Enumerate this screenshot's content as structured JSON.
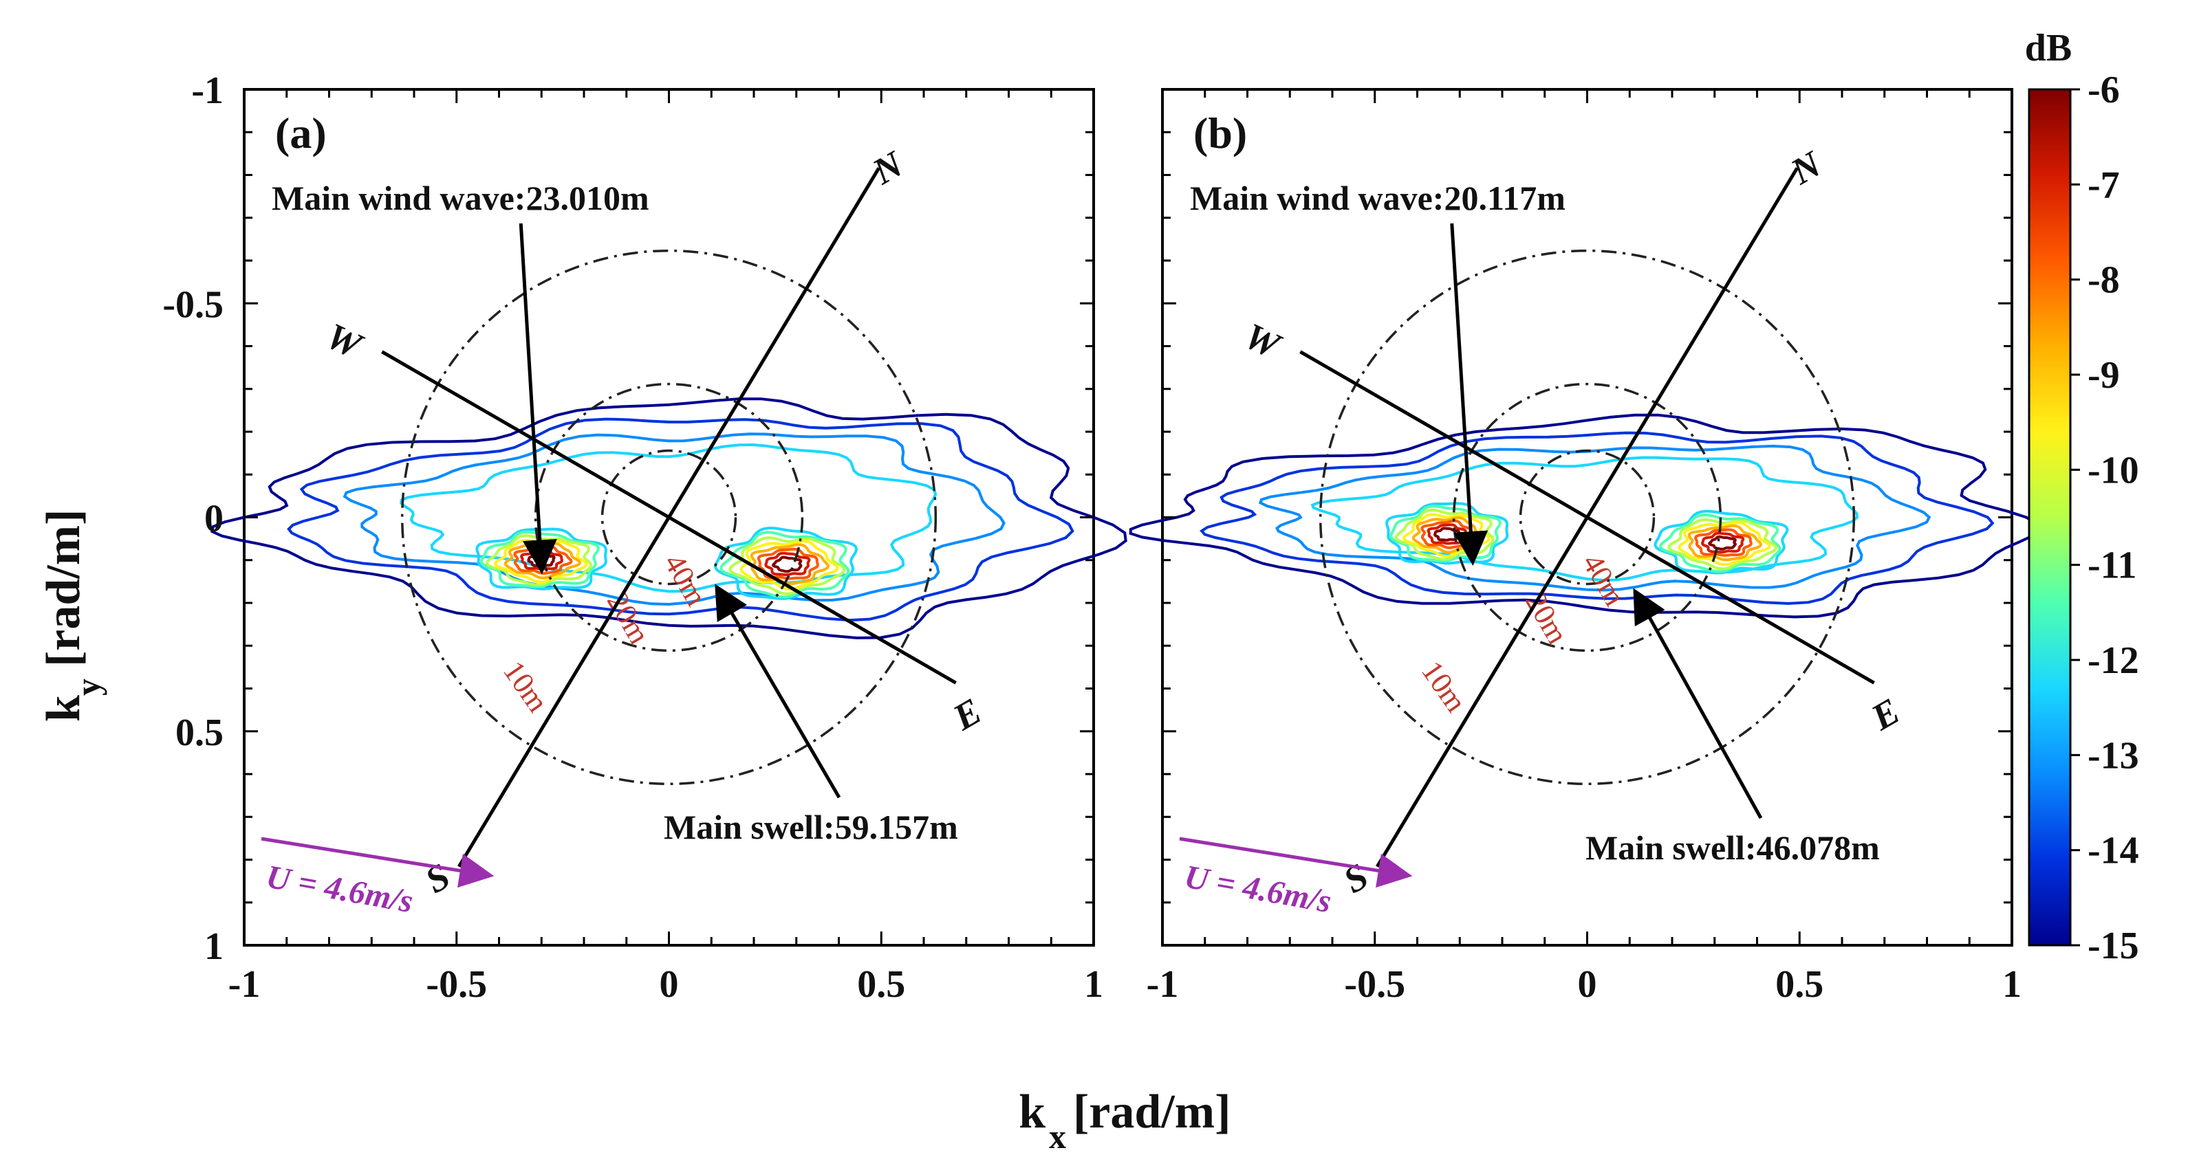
{
  "figure": {
    "xlabel_main": "k",
    "xlabel_sub": "x",
    "xlabel_unit": "[rad/m]",
    "ylabel_main": "k",
    "ylabel_sub": "y",
    "ylabel_unit": "[rad/m]"
  },
  "colorbar": {
    "title": "dB",
    "range": [
      -15,
      -6
    ],
    "ticks": [
      "-6",
      "-7",
      "-8",
      "-9",
      "-10",
      "-11",
      "-12",
      "-13",
      "-14",
      "-15"
    ],
    "colors": [
      "#7f0000",
      "#d41a00",
      "#ff5a00",
      "#ffb000",
      "#fff21a",
      "#b6ff4a",
      "#4fffb0",
      "#1ad7ff",
      "#0a8cff",
      "#0032e0",
      "#00008f"
    ]
  },
  "chart_data": [
    {
      "type": "contour",
      "panel_label": "(a)",
      "x_ticks": [
        "-1",
        "-0.5",
        "0",
        "0.5",
        "1"
      ],
      "y_ticks": [
        "-1",
        "-0.5",
        "0",
        "0.5",
        "1"
      ],
      "xlim": [
        -1,
        1
      ],
      "ylim": [
        -1,
        1
      ],
      "y_reversed": true,
      "rings": [
        {
          "label": "10m",
          "k": 0.628
        },
        {
          "label": "20m",
          "k": 0.314
        },
        {
          "label": "40m",
          "k": 0.157
        }
      ],
      "wind_wave": {
        "label": "Main wind wave:23.010m",
        "kx": -0.3,
        "ky": 0.13
      },
      "swell": {
        "label": "Main swell:59.157m",
        "kx": 0.1,
        "ky": 0.15
      },
      "compass": {
        "N": "N",
        "S": "S",
        "E": "E",
        "W": "W",
        "ns_angle_deg": 59,
        "we_angle_deg": -30
      },
      "wind": {
        "label": "U = 4.6m/s",
        "angle_deg": 15
      },
      "peaks": [
        {
          "kx": -0.3,
          "ky": 0.1,
          "sx": 0.15,
          "sy": 0.07
        },
        {
          "kx": 0.28,
          "ky": 0.11,
          "sx": 0.16,
          "sy": 0.08
        }
      ],
      "extent": {
        "kx": [
          -1,
          1
        ],
        "ky_half": 0.26
      }
    },
    {
      "type": "contour",
      "panel_label": "(b)",
      "x_ticks": [
        "-1",
        "-0.5",
        "0",
        "0.5",
        "1"
      ],
      "y_ticks": [
        "-1",
        "-0.5",
        "0",
        "0.5",
        "1"
      ],
      "xlim": [
        -1,
        1
      ],
      "ylim": [
        -1,
        1
      ],
      "y_reversed": true,
      "rings": [
        {
          "label": "10m",
          "k": 0.628
        },
        {
          "label": "20m",
          "k": 0.314
        },
        {
          "label": "40m",
          "k": 0.157
        }
      ],
      "wind_wave": {
        "label": "Main wind wave:20.117m",
        "kx": -0.27,
        "ky": 0.11
      },
      "swell": {
        "label": "Main swell:46.078m",
        "kx": 0.1,
        "ky": 0.16
      },
      "compass": {
        "N": "N",
        "S": "S",
        "E": "E",
        "W": "W",
        "ns_angle_deg": 59,
        "we_angle_deg": -30
      },
      "wind": {
        "label": "U = 4.6m/s",
        "angle_deg": 15
      },
      "peaks": [
        {
          "kx": -0.33,
          "ky": 0.04,
          "sx": 0.14,
          "sy": 0.07
        },
        {
          "kx": 0.32,
          "ky": 0.06,
          "sx": 0.15,
          "sy": 0.07
        }
      ],
      "extent": {
        "kx": [
          -1,
          1
        ],
        "ky_half": 0.22
      }
    }
  ]
}
